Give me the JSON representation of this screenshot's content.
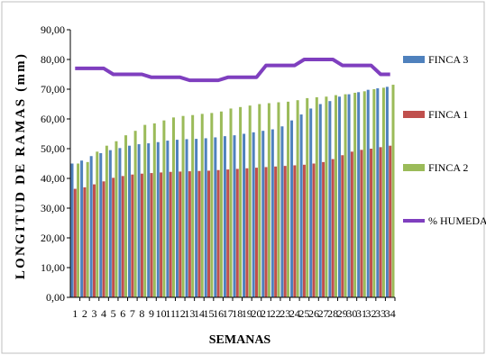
{
  "chart_data": {
    "type": "bar",
    "title": "",
    "xlabel": "SEMANAS",
    "ylabel": "LONGITUD DE RAMAS (mm)",
    "ylim": [
      0,
      90
    ],
    "yticks": [
      "0,00",
      "10,00",
      "20,00",
      "30,00",
      "40,00",
      "50,00",
      "60,00",
      "70,00",
      "80,00",
      "90,00"
    ],
    "grid": false,
    "legend_position": "right",
    "categories": [
      "1",
      "2",
      "3",
      "4",
      "5",
      "6",
      "7",
      "8",
      "9",
      "10",
      "11",
      "12",
      "13",
      "14",
      "15",
      "16",
      "17",
      "18",
      "19",
      "20",
      "21",
      "22",
      "23",
      "24",
      "25",
      "26",
      "27",
      "28",
      "29",
      "30",
      "31",
      "32",
      "33",
      "34"
    ],
    "series": [
      {
        "name": "FINCA 3",
        "kind": "bar",
        "color": "#4f81bd",
        "values": [
          45,
          46,
          47.5,
          48.5,
          49.5,
          50.2,
          51,
          51.5,
          51.8,
          52.2,
          52.7,
          53,
          53.2,
          53.3,
          53.5,
          53.8,
          54.2,
          54.5,
          55,
          55.5,
          56,
          56.5,
          57.5,
          59.5,
          61.5,
          63.5,
          65,
          66,
          67.5,
          68.3,
          69,
          69.8,
          70.3,
          70.8
        ]
      },
      {
        "name": "FINCA 1",
        "kind": "bar",
        "color": "#c0504d",
        "values": [
          36.5,
          37,
          38,
          39,
          40.2,
          40.8,
          41.3,
          41.6,
          41.8,
          42,
          42.2,
          42.3,
          42.4,
          42.5,
          42.6,
          42.8,
          43,
          43.2,
          43.4,
          43.6,
          43.8,
          44,
          44.2,
          44.4,
          44.6,
          45,
          45.5,
          46.5,
          47.8,
          49,
          49.6,
          50,
          50.5,
          51
        ]
      },
      {
        "name": "FINCA 2",
        "kind": "bar",
        "color": "#9bbb59",
        "values": [
          45,
          45.5,
          49,
          51,
          52.5,
          54.5,
          56,
          58,
          58.5,
          59.5,
          60.5,
          61,
          61.3,
          61.7,
          62,
          62.5,
          63.5,
          64,
          64.5,
          65,
          65.3,
          65.6,
          65.8,
          66.3,
          67,
          67.3,
          67.5,
          68,
          68.3,
          68.8,
          69.3,
          70,
          70.5,
          71.5
        ]
      },
      {
        "name": "% HUMEDAD",
        "kind": "line",
        "color": "#7f3fbf",
        "values": [
          77,
          77,
          77,
          77,
          75,
          75,
          75,
          75,
          74,
          74,
          74,
          74,
          73,
          73,
          73,
          73,
          74,
          74,
          74,
          74,
          78,
          78,
          78,
          78,
          80,
          80,
          80,
          80,
          78,
          78,
          78,
          78,
          75,
          75
        ]
      }
    ]
  }
}
